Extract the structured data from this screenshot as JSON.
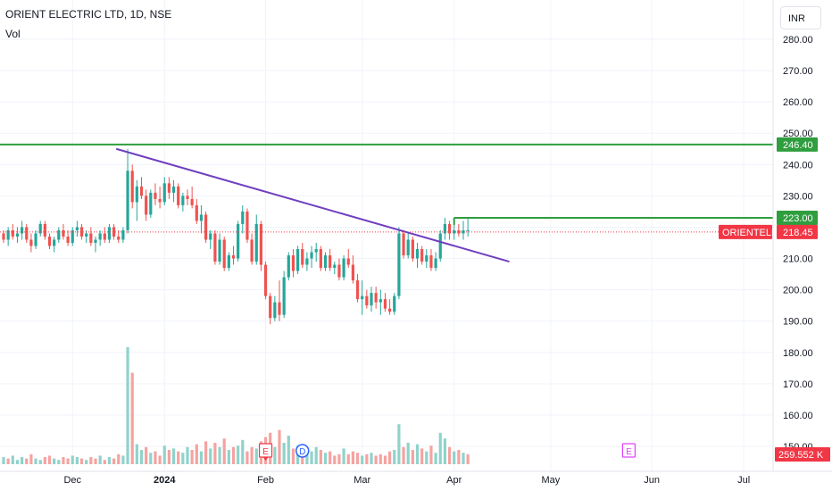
{
  "header": {
    "title": "ORIENT ELECTRIC LTD, 1D, NSE",
    "volume_label": "Vol",
    "currency_button": "INR"
  },
  "colors": {
    "up": "#26a69a",
    "down": "#ef5350",
    "vol_up": "#8fd3cb",
    "vol_down": "#f5a3a1",
    "level_line": "#2e9e3e",
    "trend_line": "#6f3fbf",
    "last_price": "#f23645",
    "grid": "#f0f3fa",
    "earnings_marker": "#f23645",
    "dividend_marker": "#2962ff",
    "future_earnings_marker": "#e040fb"
  },
  "chart_data": {
    "type": "candlestick",
    "title": "ORIENT ELECTRIC LTD, 1D, NSE",
    "ylim": [
      146,
      287
    ],
    "y_ticks": [
      150,
      160,
      170,
      180,
      190,
      200,
      210,
      220,
      230,
      240,
      250,
      260,
      270,
      280
    ],
    "y_tick_labels": [
      "150.00",
      "160.00",
      "170.00",
      "180.00",
      "190.00",
      "200.00",
      "210.00",
      "220.00",
      "230.00",
      "240.00",
      "250.00",
      "260.00",
      "270.00",
      "280.00"
    ],
    "x_labels": [
      {
        "label": "Dec",
        "index": 15
      },
      {
        "label": "2024",
        "index": 35
      },
      {
        "label": "Feb",
        "index": 57
      },
      {
        "label": "Mar",
        "index": 78
      },
      {
        "label": "Apr",
        "index": 98
      },
      {
        "label": "May",
        "index": 119
      },
      {
        "label": "Jun",
        "index": 141
      },
      {
        "label": "Jul",
        "index": 161
      }
    ],
    "candles": [
      [
        218,
        219,
        215,
        216
      ],
      [
        216,
        220,
        214,
        219
      ],
      [
        219,
        221,
        216,
        217
      ],
      [
        217,
        220,
        215,
        218
      ],
      [
        218,
        222,
        216,
        220
      ],
      [
        220,
        221,
        215,
        216
      ],
      [
        216,
        218,
        212,
        214
      ],
      [
        214,
        219,
        213,
        218
      ],
      [
        218,
        222,
        217,
        221
      ],
      [
        221,
        222,
        216,
        217
      ],
      [
        217,
        218,
        213,
        214
      ],
      [
        214,
        217,
        212,
        216
      ],
      [
        216,
        220,
        215,
        219
      ],
      [
        219,
        221,
        216,
        217
      ],
      [
        217,
        219,
        214,
        215
      ],
      [
        215,
        220,
        214,
        219
      ],
      [
        219,
        222,
        217,
        220
      ],
      [
        220,
        221,
        216,
        217
      ],
      [
        217,
        219,
        215,
        218
      ],
      [
        218,
        220,
        214,
        215
      ],
      [
        215,
        217,
        212,
        216
      ],
      [
        216,
        219,
        214,
        218
      ],
      [
        218,
        220,
        215,
        216
      ],
      [
        216,
        221,
        215,
        220
      ],
      [
        220,
        221,
        216,
        217
      ],
      [
        217,
        219,
        215,
        216
      ],
      [
        216,
        220,
        215,
        219
      ],
      [
        219,
        245,
        218,
        238
      ],
      [
        238,
        240,
        226,
        228
      ],
      [
        228,
        235,
        222,
        233
      ],
      [
        233,
        236,
        229,
        230
      ],
      [
        230,
        232,
        222,
        224
      ],
      [
        224,
        232,
        223,
        231
      ],
      [
        231,
        234,
        227,
        229
      ],
      [
        229,
        233,
        226,
        228
      ],
      [
        228,
        236,
        227,
        234
      ],
      [
        234,
        236,
        229,
        231
      ],
      [
        231,
        235,
        228,
        233
      ],
      [
        233,
        234,
        226,
        227
      ],
      [
        227,
        231,
        225,
        230
      ],
      [
        230,
        232,
        227,
        229
      ],
      [
        229,
        233,
        226,
        227
      ],
      [
        227,
        229,
        221,
        222
      ],
      [
        222,
        227,
        218,
        224
      ],
      [
        224,
        225,
        215,
        216
      ],
      [
        216,
        219,
        213,
        218
      ],
      [
        218,
        219,
        208,
        209
      ],
      [
        209,
        218,
        208,
        216
      ],
      [
        216,
        217,
        206,
        207
      ],
      [
        207,
        212,
        206,
        211
      ],
      [
        211,
        214,
        208,
        210
      ],
      [
        210,
        222,
        209,
        221
      ],
      [
        221,
        227,
        218,
        225
      ],
      [
        225,
        226,
        215,
        216
      ],
      [
        216,
        218,
        208,
        209
      ],
      [
        209,
        224,
        208,
        221
      ],
      [
        221,
        222,
        206,
        208
      ],
      [
        208,
        209,
        197,
        198
      ],
      [
        198,
        199,
        189,
        191
      ],
      [
        191,
        198,
        190,
        196
      ],
      [
        196,
        203,
        190,
        192
      ],
      [
        192,
        206,
        191,
        204
      ],
      [
        204,
        212,
        203,
        211
      ],
      [
        211,
        213,
        204,
        206
      ],
      [
        206,
        214,
        205,
        213
      ],
      [
        213,
        215,
        207,
        208
      ],
      [
        208,
        212,
        206,
        210
      ],
      [
        210,
        214,
        207,
        212
      ],
      [
        212,
        215,
        209,
        213
      ],
      [
        213,
        214,
        206,
        207
      ],
      [
        207,
        212,
        206,
        211
      ],
      [
        211,
        213,
        206,
        207
      ],
      [
        207,
        209,
        205,
        208
      ],
      [
        208,
        210,
        203,
        204
      ],
      [
        204,
        211,
        203,
        210
      ],
      [
        210,
        213,
        207,
        208
      ],
      [
        208,
        211,
        202,
        203
      ],
      [
        203,
        205,
        196,
        197
      ],
      [
        197,
        203,
        192,
        198
      ],
      [
        198,
        200,
        194,
        195
      ],
      [
        195,
        201,
        193,
        199
      ],
      [
        199,
        201,
        194,
        196
      ],
      [
        196,
        200,
        192,
        197
      ],
      [
        197,
        199,
        193,
        194
      ],
      [
        194,
        197,
        192,
        193
      ],
      [
        193,
        199,
        192,
        198
      ],
      [
        198,
        220,
        197,
        218
      ],
      [
        218,
        219,
        210,
        211
      ],
      [
        211,
        218,
        210,
        216
      ],
      [
        216,
        217,
        209,
        210
      ],
      [
        210,
        215,
        207,
        213
      ],
      [
        213,
        214,
        208,
        209
      ],
      [
        209,
        213,
        207,
        211
      ],
      [
        211,
        213,
        206,
        207
      ],
      [
        207,
        212,
        206,
        210
      ],
      [
        210,
        219,
        209,
        218
      ],
      [
        218,
        223,
        216,
        221
      ],
      [
        221,
        222,
        216,
        218
      ],
      [
        218,
        221,
        216,
        219
      ],
      [
        219,
        221,
        217,
        218
      ],
      [
        218,
        222,
        216,
        219
      ],
      [
        219,
        223,
        217,
        219
      ]
    ],
    "volumes": [
      [
        5,
        1
      ],
      [
        4,
        0
      ],
      [
        6,
        1
      ],
      [
        3,
        1
      ],
      [
        5,
        1
      ],
      [
        4,
        0
      ],
      [
        7,
        0
      ],
      [
        4,
        1
      ],
      [
        3,
        1
      ],
      [
        5,
        0
      ],
      [
        6,
        0
      ],
      [
        4,
        1
      ],
      [
        3,
        1
      ],
      [
        5,
        0
      ],
      [
        4,
        0
      ],
      [
        6,
        1
      ],
      [
        5,
        1
      ],
      [
        4,
        0
      ],
      [
        3,
        1
      ],
      [
        5,
        0
      ],
      [
        4,
        0
      ],
      [
        6,
        1
      ],
      [
        3,
        0
      ],
      [
        5,
        1
      ],
      [
        4,
        0
      ],
      [
        7,
        0
      ],
      [
        6,
        1
      ],
      [
        82,
        1
      ],
      [
        64,
        0
      ],
      [
        14,
        1
      ],
      [
        10,
        1
      ],
      [
        12,
        0
      ],
      [
        8,
        1
      ],
      [
        9,
        0
      ],
      [
        6,
        0
      ],
      [
        13,
        1
      ],
      [
        10,
        0
      ],
      [
        11,
        1
      ],
      [
        9,
        0
      ],
      [
        8,
        1
      ],
      [
        12,
        1
      ],
      [
        10,
        0
      ],
      [
        14,
        0
      ],
      [
        9,
        1
      ],
      [
        16,
        0
      ],
      [
        11,
        1
      ],
      [
        15,
        0
      ],
      [
        12,
        1
      ],
      [
        18,
        0
      ],
      [
        10,
        1
      ],
      [
        12,
        0
      ],
      [
        13,
        1
      ],
      [
        17,
        1
      ],
      [
        9,
        0
      ],
      [
        12,
        0
      ],
      [
        11,
        1
      ],
      [
        16,
        0
      ],
      [
        19,
        0
      ],
      [
        22,
        0
      ],
      [
        12,
        1
      ],
      [
        24,
        0
      ],
      [
        15,
        1
      ],
      [
        20,
        1
      ],
      [
        11,
        0
      ],
      [
        13,
        1
      ],
      [
        8,
        0
      ],
      [
        10,
        1
      ],
      [
        9,
        1
      ],
      [
        12,
        1
      ],
      [
        10,
        0
      ],
      [
        8,
        1
      ],
      [
        9,
        0
      ],
      [
        6,
        0
      ],
      [
        7,
        0
      ],
      [
        11,
        1
      ],
      [
        7,
        0
      ],
      [
        9,
        0
      ],
      [
        8,
        0
      ],
      [
        6,
        1
      ],
      [
        7,
        0
      ],
      [
        8,
        1
      ],
      [
        6,
        0
      ],
      [
        7,
        0
      ],
      [
        6,
        0
      ],
      [
        9,
        0
      ],
      [
        10,
        1
      ],
      [
        28,
        1
      ],
      [
        12,
        0
      ],
      [
        15,
        1
      ],
      [
        10,
        0
      ],
      [
        14,
        1
      ],
      [
        11,
        0
      ],
      [
        9,
        1
      ],
      [
        13,
        0
      ],
      [
        8,
        1
      ],
      [
        22,
        1
      ],
      [
        18,
        1
      ],
      [
        12,
        0
      ],
      [
        9,
        1
      ],
      [
        10,
        0
      ],
      [
        8,
        1
      ],
      [
        7,
        0
      ]
    ],
    "volume_label_value": "259.552 K",
    "horizontal_levels": [
      {
        "price": 246.4,
        "label": "246.40",
        "from_index": -2
      },
      {
        "price": 223.0,
        "label": "223.00",
        "from_index": 98
      }
    ],
    "trend_line": {
      "from": [
        24.5,
        245
      ],
      "to": [
        110,
        209
      ]
    },
    "last_price": {
      "symbol": "ORIENTELEC",
      "value": 218.45,
      "label": "218.45"
    },
    "event_markers": [
      {
        "type": "earnings",
        "letter": "E",
        "index": 57
      },
      {
        "type": "dividend",
        "letter": "D",
        "index": 65
      },
      {
        "type": "earnings-upcoming",
        "letter": "E",
        "index": 136
      }
    ]
  }
}
